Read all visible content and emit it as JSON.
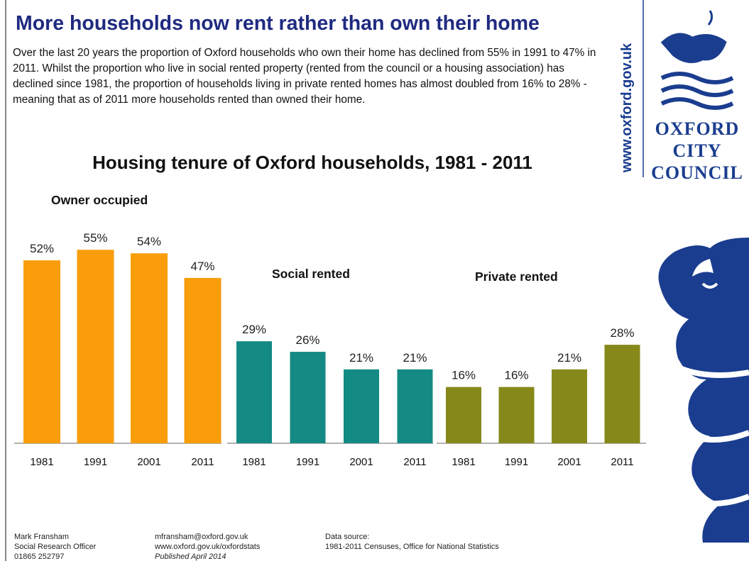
{
  "header": {
    "title": "More households now rent rather than own their home",
    "text": "Over the last 20 years the proportion of Oxford households who own their home has declined from 55% in 1991 to 47% in 2011.  Whilst the proportion who live in social rented property (rented from the council or a housing association) has declined since 1981, the proportion of households living in private rented homes has almost doubled from 16% to 28% - meaning that as of 2011 more households rented than owned their home."
  },
  "figure_title": "Housing tenure of Oxford households, 1981 - 2011",
  "chart_data": [
    {
      "type": "bar",
      "title": "Owner occupied",
      "categories": [
        "1981",
        "1991",
        "2001",
        "2011"
      ],
      "values": [
        52,
        55,
        54,
        47
      ],
      "value_labels": [
        "52%",
        "55%",
        "54%",
        "47%"
      ],
      "color": "#f99d0a"
    },
    {
      "type": "bar",
      "title": "Social rented",
      "categories": [
        "1981",
        "1991",
        "2001",
        "2011"
      ],
      "values": [
        29,
        26,
        21,
        21
      ],
      "value_labels": [
        "29%",
        "26%",
        "21%",
        "21%"
      ],
      "color": "#138a83"
    },
    {
      "type": "bar",
      "title": "Private rented",
      "categories": [
        "1981",
        "1991",
        "2001",
        "2011"
      ],
      "values": [
        16,
        16,
        21,
        28
      ],
      "value_labels": [
        "16%",
        "16%",
        "21%",
        "28%"
      ],
      "color": "#86891a"
    }
  ],
  "website": "www.oxford.gov.uk",
  "logo": {
    "lines": [
      "OXFORD",
      "CITY",
      "COUNCIL"
    ]
  },
  "footer": {
    "columns": [
      [
        "Mark Fransham",
        "Social Research Officer",
        "01865 252797"
      ],
      [
        "mfransham@oxford.gov.uk",
        "www.oxford.gov.uk/oxfordstats",
        "Published April 2014"
      ],
      [
        "Data source:",
        "1981-2011 Censuses, Office for National Statistics"
      ]
    ]
  }
}
